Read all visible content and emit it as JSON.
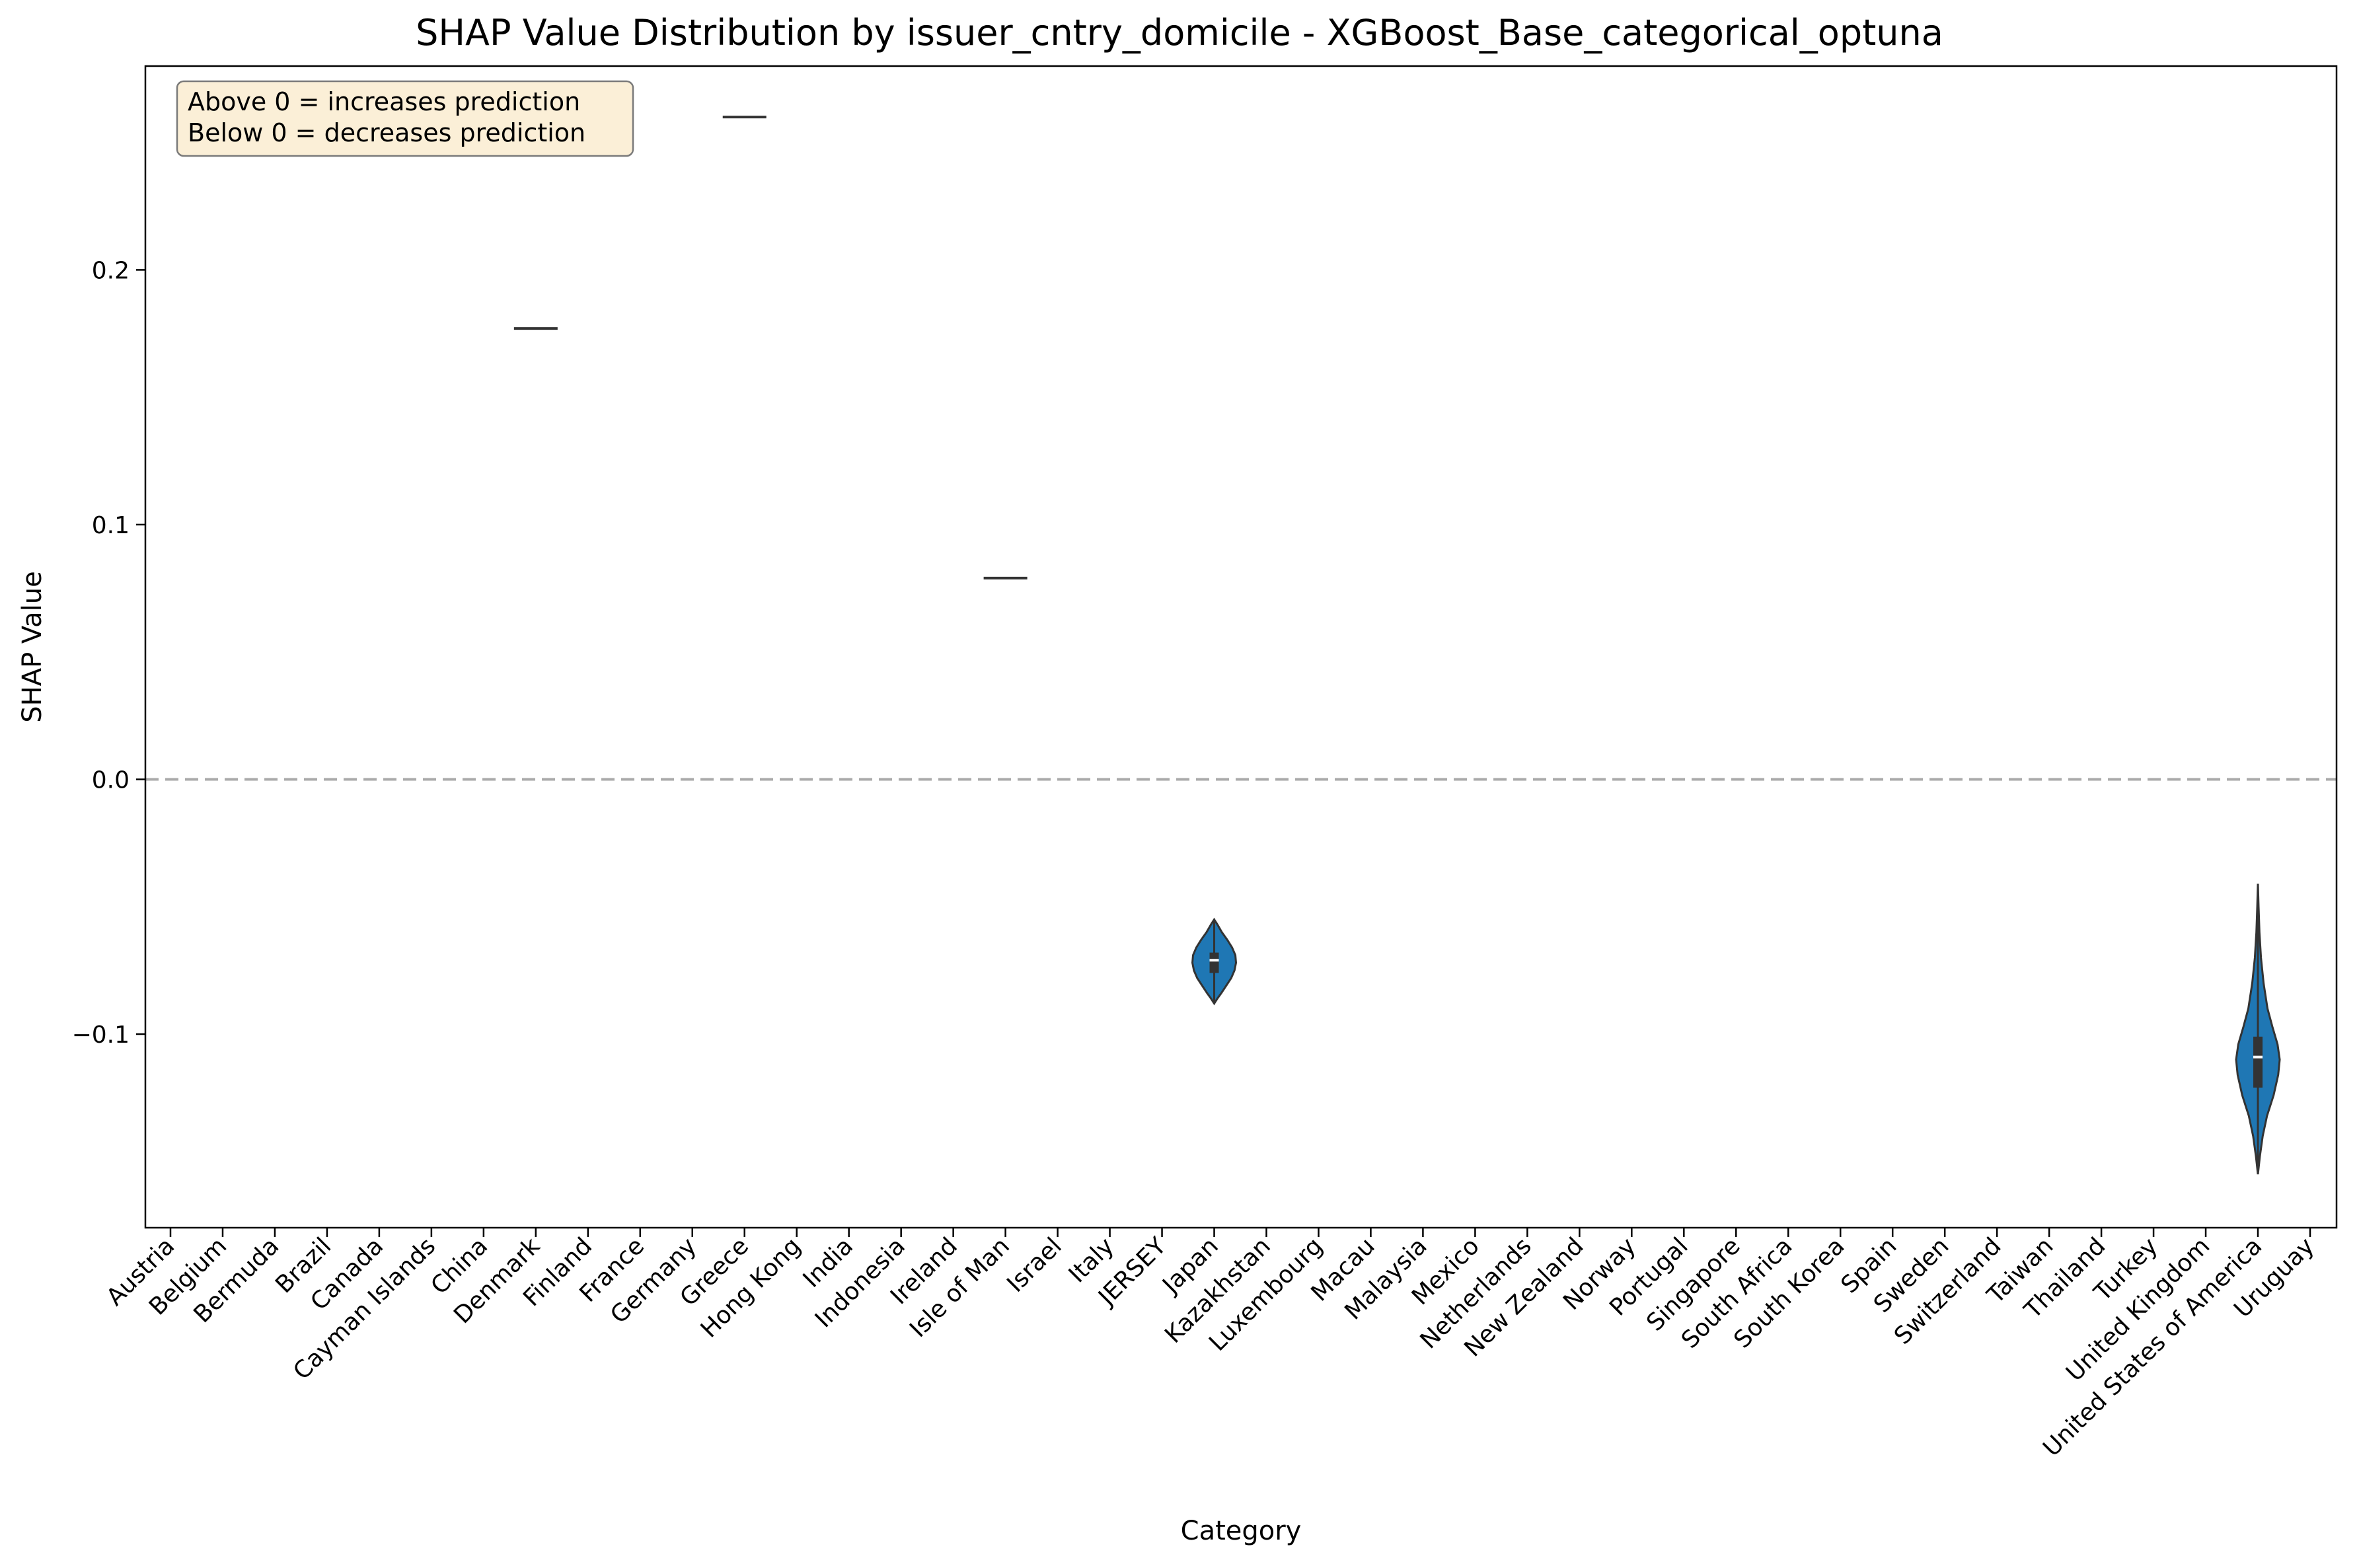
{
  "chart_data": {
    "type": "violin",
    "title": "SHAP Value Distribution by issuer_cntry_domicile - XGBoost_Base_categorical_optuna",
    "xlabel": "Category",
    "ylabel": "SHAP Value",
    "ylim": [
      -0.176,
      0.28
    ],
    "yticks": [
      -0.1,
      0.0,
      0.1,
      0.2
    ],
    "ytick_labels": [
      "−0.1",
      "0.0",
      "0.1",
      "0.2"
    ],
    "grid": false,
    "reference_line": {
      "y": 0.0,
      "style": "dashed",
      "color": "#aaaaaa"
    },
    "annotation": {
      "lines": [
        "Above 0 = increases prediction",
        "Below 0 = decreases prediction"
      ],
      "placement": "top-left",
      "background": "#fbefd7"
    },
    "colors": {
      "violin_fill": "#1f77b4",
      "line": "#333333",
      "median": "#ffffff"
    },
    "categories": [
      "Austria",
      "Belgium",
      "Bermuda",
      "Brazil",
      "Canada",
      "Cayman Islands",
      "China",
      "Denmark",
      "Finland",
      "France",
      "Germany",
      "Greece",
      "Hong Kong",
      "India",
      "Indonesia",
      "Ireland",
      "Isle of Man",
      "Israel",
      "Italy",
      "JERSEY",
      "Japan",
      "Kazakhstan",
      "Luxembourg",
      "Macau",
      "Malaysia",
      "Mexico",
      "Netherlands",
      "New Zealand",
      "Norway",
      "Portugal",
      "Singapore",
      "South Africa",
      "South Korea",
      "Spain",
      "Sweden",
      "Switzerland",
      "Taiwan",
      "Thailand",
      "Turkey",
      "United Kingdom",
      "United States of America",
      "Uruguay"
    ],
    "series": [
      {
        "category": "Denmark",
        "kind": "single",
        "value": 0.177
      },
      {
        "category": "Greece",
        "kind": "single",
        "value": 0.26
      },
      {
        "category": "Isle of Man",
        "kind": "single",
        "value": 0.079
      },
      {
        "category": "Japan",
        "kind": "violin",
        "min": -0.088,
        "max": -0.055,
        "q1": -0.076,
        "median": -0.071,
        "q3": -0.068,
        "density": [
          [
            -0.088,
            0.0
          ],
          [
            -0.086,
            0.15
          ],
          [
            -0.084,
            0.32
          ],
          [
            -0.081,
            0.55
          ],
          [
            -0.078,
            0.78
          ],
          [
            -0.075,
            0.93
          ],
          [
            -0.072,
            1.0
          ],
          [
            -0.069,
            0.97
          ],
          [
            -0.066,
            0.82
          ],
          [
            -0.063,
            0.6
          ],
          [
            -0.06,
            0.35
          ],
          [
            -0.057,
            0.15
          ],
          [
            -0.055,
            0.0
          ]
        ]
      },
      {
        "category": "United States of America",
        "kind": "violin",
        "min": -0.155,
        "max": -0.041,
        "q1": -0.121,
        "median": -0.109,
        "q3": -0.101,
        "density": [
          [
            -0.155,
            0.0
          ],
          [
            -0.148,
            0.09
          ],
          [
            -0.14,
            0.22
          ],
          [
            -0.132,
            0.42
          ],
          [
            -0.124,
            0.72
          ],
          [
            -0.116,
            0.93
          ],
          [
            -0.11,
            1.0
          ],
          [
            -0.104,
            0.9
          ],
          [
            -0.097,
            0.66
          ],
          [
            -0.09,
            0.44
          ],
          [
            -0.08,
            0.26
          ],
          [
            -0.07,
            0.14
          ],
          [
            -0.06,
            0.07
          ],
          [
            -0.05,
            0.03
          ],
          [
            -0.041,
            0.0
          ]
        ]
      }
    ]
  }
}
